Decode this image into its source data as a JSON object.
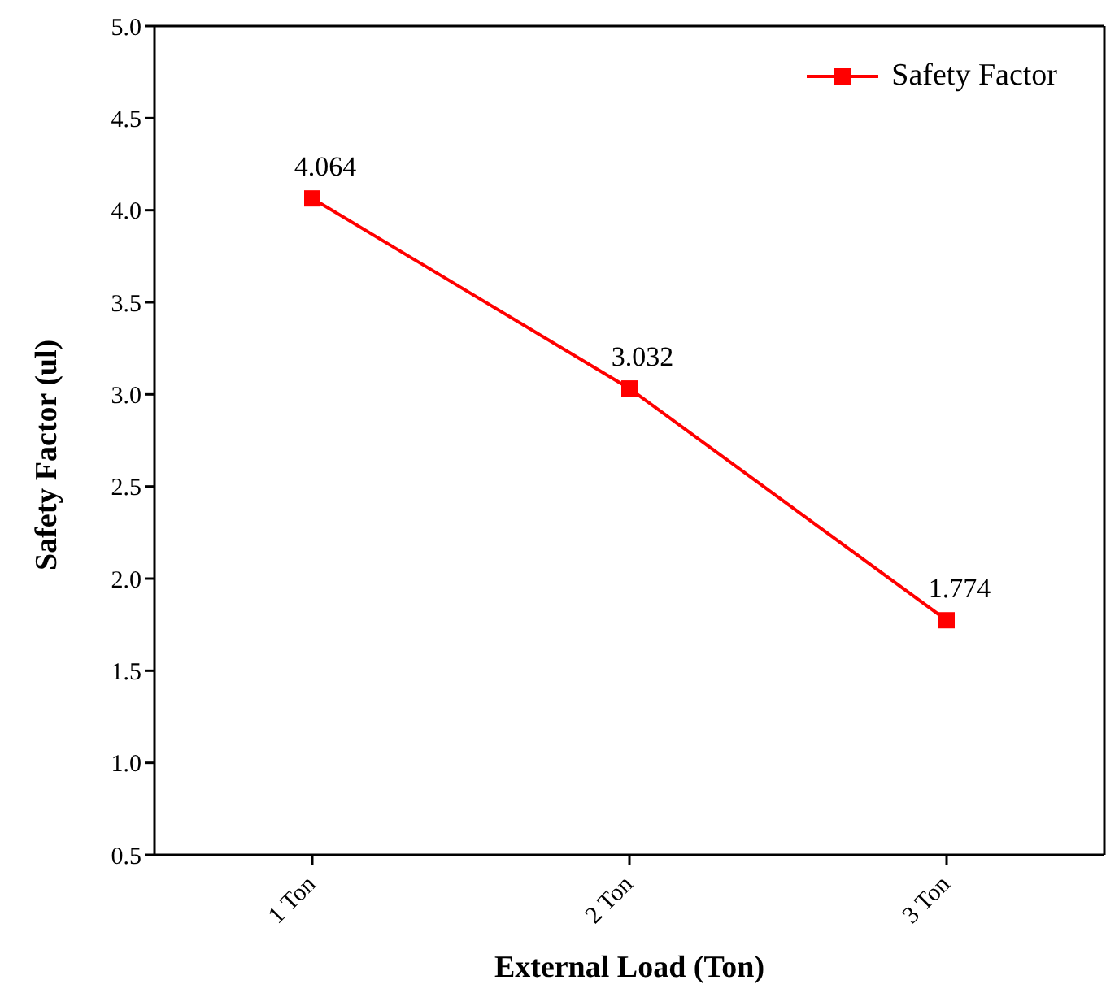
{
  "chart_data": {
    "type": "line",
    "xlabel": "External Load (Ton)",
    "ylabel": "Safety Factor (ul)",
    "categories": [
      "1 Ton",
      "2 Ton",
      "3 Ton"
    ],
    "series": [
      {
        "name": "Safety Factor",
        "color": "#ff0000",
        "values": [
          4.064,
          3.032,
          1.774
        ]
      }
    ],
    "ylim": [
      0.5,
      5.0
    ],
    "yticks": [
      {
        "value": 0.5,
        "label": "0.5"
      },
      {
        "value": 1,
        "label": "1.0"
      },
      {
        "value": 1.5,
        "label": "1.5"
      },
      {
        "value": 2,
        "label": "2.0"
      },
      {
        "value": 2.5,
        "label": "2.5"
      },
      {
        "value": 3,
        "label": "3.0"
      },
      {
        "value": 3.5,
        "label": "3.5"
      },
      {
        "value": 4,
        "label": "4.0"
      },
      {
        "value": 4.5,
        "label": "4.5"
      },
      {
        "value": 5,
        "label": "5.0"
      }
    ],
    "data_labels": true,
    "legend": "top right",
    "marker": "square",
    "line_style": "solid",
    "grid": false
  }
}
